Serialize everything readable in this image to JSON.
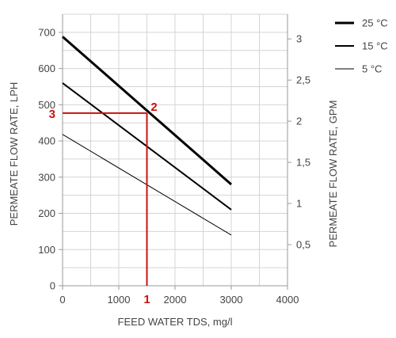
{
  "chart_data": {
    "type": "line",
    "xlabel": "FEED WATER TDS, mg/l",
    "ylabel": "PERMEATE FLOW RATE, LPH",
    "y2label": "PERMEATE FLOW RATE, GPM",
    "xlim": [
      0,
      4000
    ],
    "ylim": [
      0,
      750
    ],
    "y2lim": [
      0,
      3.3
    ],
    "grid": true,
    "legend_position": "top-right",
    "x_ticks": [
      "0",
      "1000",
      "2000",
      "3000",
      "4000"
    ],
    "y_ticks": [
      "0",
      "100",
      "200",
      "300",
      "400",
      "500",
      "600",
      "700"
    ],
    "y2_ticks": [
      "0,5",
      "1",
      "1,5",
      "2",
      "2,5",
      "3"
    ],
    "x_tick_values": [
      0,
      1000,
      2000,
      3000,
      4000
    ],
    "y_tick_values": [
      0,
      100,
      200,
      300,
      400,
      500,
      600,
      700
    ],
    "y2_tick_values": [
      0.5,
      1,
      1.5,
      2,
      2.5,
      3
    ],
    "x_minor_step": 500,
    "y_minor_step": 50,
    "series": [
      {
        "name": "25 °C",
        "x": [
          0,
          3000
        ],
        "y": [
          688,
          280
        ],
        "line_style": "thick",
        "color": "#000000"
      },
      {
        "name": "15 °C",
        "x": [
          0,
          3000
        ],
        "y": [
          560,
          210
        ],
        "line_style": "medium",
        "color": "#000000"
      },
      {
        "name": "5 °C",
        "x": [
          0,
          3000
        ],
        "y": [
          418,
          140
        ],
        "line_style": "thin",
        "color": "#000000"
      }
    ],
    "annotations": {
      "color": "#cc1111",
      "reading_x": 1500,
      "reading_y": 477,
      "labels": [
        "1",
        "2",
        "3"
      ]
    }
  }
}
